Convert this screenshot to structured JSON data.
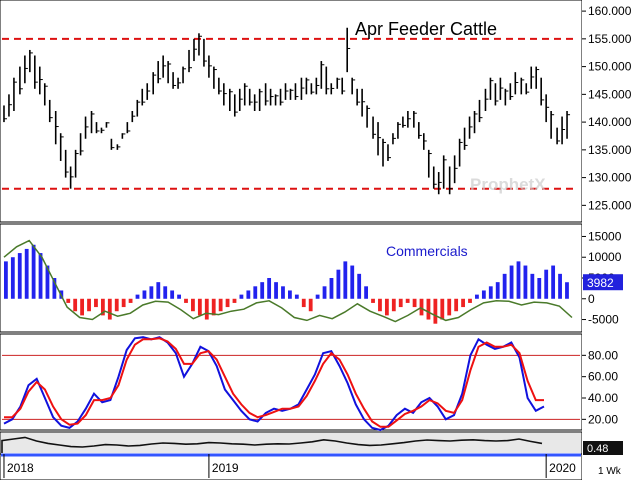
{
  "chart_data": [
    {
      "type": "ohlc",
      "title": "Apr Feeder Cattle",
      "ylim": [
        122,
        162
      ],
      "y_ticks": [
        "160.000",
        "155.000",
        "150.000",
        "145.000",
        "140.000",
        "135.000",
        "130.000",
        "125.000"
      ],
      "y_tick_values": [
        160,
        155,
        150,
        145,
        140,
        135,
        130,
        125
      ],
      "reference_lines": [
        155,
        128
      ],
      "reference_color": "#dd1111",
      "watermark": "ProphetX",
      "bar_color": "#000000",
      "series": [
        {
          "name": "price",
          "values": [
            [
              0.0,
              143,
              140
            ],
            [
              0.5,
              145,
              141
            ],
            [
              1.0,
              148,
              142
            ],
            [
              1.6,
              150,
              145
            ],
            [
              2.1,
              152,
              147
            ],
            [
              2.6,
              153,
              149
            ],
            [
              3.1,
              152,
              146
            ],
            [
              3.6,
              150,
              145
            ],
            [
              4.1,
              147,
              143
            ],
            [
              4.6,
              144,
              140
            ],
            [
              5.2,
              142,
              136
            ],
            [
              5.7,
              138,
              133
            ],
            [
              6.2,
              135,
              130
            ],
            [
              6.7,
              132,
              128
            ],
            [
              7.2,
              135,
              130
            ],
            [
              7.7,
              138,
              134
            ],
            [
              8.2,
              141,
              137
            ],
            [
              8.8,
              142,
              138
            ],
            [
              9.3,
              140,
              138
            ],
            [
              9.8,
              139,
              138
            ],
            [
              10.3,
              140,
              139
            ],
            [
              10.8,
              137,
              135
            ],
            [
              11.4,
              136,
              135
            ],
            [
              11.9,
              138,
              137
            ],
            [
              12.4,
              140,
              138
            ],
            [
              12.9,
              142,
              140
            ],
            [
              13.4,
              144,
              141
            ],
            [
              13.9,
              146,
              143
            ],
            [
              14.4,
              147,
              144
            ],
            [
              15.0,
              149,
              145
            ],
            [
              15.5,
              151,
              147
            ],
            [
              16.0,
              152,
              148
            ],
            [
              16.5,
              151,
              147
            ],
            [
              17.0,
              149,
              146
            ],
            [
              17.5,
              148,
              146
            ],
            [
              18.0,
              150,
              147
            ],
            [
              18.6,
              153,
              149
            ],
            [
              19.1,
              155,
              151
            ],
            [
              19.6,
              156,
              152
            ],
            [
              20.1,
              155,
              150
            ],
            [
              20.6,
              152,
              148
            ],
            [
              21.1,
              150,
              146
            ],
            [
              21.6,
              148,
              145
            ],
            [
              22.1,
              147,
              143
            ],
            [
              22.7,
              146,
              142
            ],
            [
              23.2,
              145,
              141
            ],
            [
              23.7,
              146,
              142
            ],
            [
              24.2,
              147,
              143
            ],
            [
              24.7,
              146,
              143
            ],
            [
              25.2,
              145,
              142
            ],
            [
              25.7,
              146,
              142
            ],
            [
              26.3,
              147,
              143
            ],
            [
              26.8,
              146,
              143
            ],
            [
              27.3,
              145,
              143
            ],
            [
              27.8,
              146,
              143
            ],
            [
              28.3,
              147,
              144
            ],
            [
              28.8,
              146,
              144
            ],
            [
              29.3,
              147,
              144
            ],
            [
              29.9,
              148,
              144
            ],
            [
              30.4,
              148,
              145
            ],
            [
              30.9,
              147,
              145
            ],
            [
              31.4,
              148,
              145
            ],
            [
              31.9,
              151,
              146
            ],
            [
              32.4,
              150,
              145
            ],
            [
              32.9,
              147,
              145
            ],
            [
              33.5,
              148,
              146
            ],
            [
              34.0,
              148,
              145
            ],
            [
              34.5,
              157,
              149
            ],
            [
              35.0,
              148,
              145
            ],
            [
              35.5,
              146,
              143
            ],
            [
              36.0,
              146,
              141
            ],
            [
              36.5,
              143,
              139
            ],
            [
              37.1,
              141,
              137
            ],
            [
              37.6,
              140,
              134
            ],
            [
              38.1,
              137,
              132
            ],
            [
              38.6,
              136,
              133
            ],
            [
              39.1,
              138,
              136
            ],
            [
              39.6,
              140,
              137
            ],
            [
              40.1,
              141,
              139
            ],
            [
              40.6,
              142,
              139
            ],
            [
              41.2,
              142,
              139
            ],
            [
              41.7,
              140,
              137
            ],
            [
              42.2,
              138,
              135
            ],
            [
              42.7,
              135,
              130
            ],
            [
              43.2,
              132,
              128
            ],
            [
              43.7,
              131,
              127
            ],
            [
              44.2,
              134,
              128
            ],
            [
              44.8,
              132,
              127
            ],
            [
              45.3,
              134,
              129
            ],
            [
              45.8,
              137,
              132
            ],
            [
              46.3,
              139,
              135
            ],
            [
              46.8,
              141,
              137
            ],
            [
              47.3,
              142,
              138
            ],
            [
              47.8,
              144,
              140
            ],
            [
              48.4,
              146,
              142
            ],
            [
              48.9,
              148,
              144
            ],
            [
              49.4,
              147,
              143
            ],
            [
              49.9,
              148,
              144
            ],
            [
              50.4,
              146,
              143
            ],
            [
              50.9,
              147,
              144
            ],
            [
              51.4,
              149,
              145
            ],
            [
              52.0,
              148,
              145
            ],
            [
              52.5,
              147,
              145
            ],
            [
              53.0,
              150,
              146
            ],
            [
              53.5,
              150,
              146
            ],
            [
              54.0,
              148,
              143
            ],
            [
              54.5,
              145,
              140
            ],
            [
              55.0,
              142,
              137
            ],
            [
              55.6,
              139,
              136
            ],
            [
              56.1,
              141,
              136
            ],
            [
              56.6,
              142,
              137
            ]
          ]
        }
      ]
    },
    {
      "type": "bar",
      "title": "Commercials",
      "ylim": [
        -8000,
        18000
      ],
      "y_ticks": [
        "15000",
        "10000",
        "5000",
        "0",
        "-5000"
      ],
      "y_tick_values": [
        15000,
        10000,
        5000,
        0,
        -5000
      ],
      "current_value_label": "3982",
      "positive_color": "#2222ee",
      "negative_color": "#ee2222",
      "net_line_color": "#4a7a2a",
      "series": [
        {
          "name": "net_position",
          "values": [
            9000,
            10000,
            11000,
            12000,
            13000,
            11000,
            8000,
            5000,
            2000,
            -1000,
            -3000,
            -4000,
            -3000,
            -2000,
            -4000,
            -5000,
            -3000,
            -2000,
            -1000,
            1000,
            2000,
            3000,
            4000,
            3000,
            2000,
            1000,
            -1000,
            -3000,
            -4000,
            -5000,
            -4000,
            -3000,
            -2000,
            -1000,
            1000,
            2000,
            3000,
            4000,
            5000,
            4000,
            3000,
            2000,
            1000,
            -2000,
            -3000,
            1000,
            3000,
            5000,
            7000,
            9000,
            8000,
            6000,
            3000,
            -1000,
            -3000,
            -4000,
            -3000,
            -2000,
            -1000,
            -2000,
            -4000,
            -5000,
            -6000,
            -5000,
            -4000,
            -3000,
            -2000,
            -1000,
            1000,
            2000,
            3000,
            4000,
            6000,
            8000,
            9000,
            8000,
            6000,
            5000,
            7000,
            8000,
            6000,
            3982
          ]
        },
        {
          "name": "net_line",
          "values": [
            10000,
            12500,
            14000,
            10000,
            4000,
            -2000,
            -4500,
            -5000,
            -3000,
            -4200,
            -3500,
            -1500,
            -600,
            -800,
            -2600,
            -4800,
            -3500,
            -3800,
            -3000,
            -2500,
            -1000,
            -500,
            -2200,
            -4500,
            -5200,
            -4000,
            -4800,
            -3200,
            -1200,
            -3000,
            -4200,
            -5500,
            -4000,
            -2200,
            -3800,
            -5200,
            -4500,
            -2600,
            -1000,
            -500,
            -600,
            -1500,
            -800,
            -1000,
            -1800,
            -4500
          ]
        }
      ]
    },
    {
      "type": "line",
      "title": "",
      "ylim": [
        10,
        100
      ],
      "y_ticks": [
        "80.00",
        "60.00",
        "40.00",
        "20.00"
      ],
      "y_tick_values": [
        80,
        60,
        40,
        20
      ],
      "reference_lines": [
        80,
        20
      ],
      "reference_color": "#cc2222",
      "series": [
        {
          "name": "fast",
          "color": "#1111dd",
          "values": [
            16,
            20,
            32,
            52,
            58,
            40,
            22,
            14,
            12,
            18,
            30,
            44,
            36,
            38,
            60,
            85,
            96,
            97,
            95,
            97,
            92,
            82,
            60,
            72,
            88,
            84,
            70,
            48,
            38,
            28,
            20,
            18,
            26,
            30,
            28,
            30,
            34,
            48,
            62,
            82,
            84,
            70,
            54,
            34,
            20,
            12,
            10,
            14,
            24,
            30,
            26,
            36,
            40,
            32,
            20,
            24,
            44,
            80,
            95,
            90,
            86,
            88,
            92,
            78,
            40,
            28,
            32
          ]
        },
        {
          "name": "slow",
          "color": "#ee1111",
          "values": [
            22,
            22,
            30,
            46,
            55,
            48,
            32,
            20,
            15,
            16,
            24,
            38,
            38,
            40,
            52,
            76,
            90,
            95,
            95,
            96,
            93,
            86,
            72,
            72,
            82,
            84,
            76,
            60,
            44,
            34,
            26,
            22,
            24,
            27,
            30,
            30,
            32,
            42,
            56,
            72,
            82,
            76,
            62,
            44,
            30,
            18,
            13,
            13,
            19,
            25,
            28,
            32,
            38,
            35,
            28,
            26,
            38,
            66,
            88,
            92,
            88,
            88,
            90,
            82,
            56,
            38,
            38
          ]
        }
      ]
    },
    {
      "type": "area",
      "title": "",
      "ylim": [
        0,
        1.0
      ],
      "current_value_label": "0.48",
      "color": "#111111",
      "series": [
        {
          "name": "volatility",
          "values": [
            0.62,
            0.7,
            0.78,
            0.6,
            0.48,
            0.4,
            0.32,
            0.3,
            0.35,
            0.42,
            0.4,
            0.35,
            0.38,
            0.45,
            0.5,
            0.48,
            0.44,
            0.46,
            0.52,
            0.5,
            0.46,
            0.44,
            0.4,
            0.44,
            0.46,
            0.45,
            0.5,
            0.56,
            0.66,
            0.6,
            0.5,
            0.42,
            0.38,
            0.4,
            0.46,
            0.52,
            0.6,
            0.65,
            0.62,
            0.6,
            0.64,
            0.66,
            0.62,
            0.6,
            0.62,
            0.7,
            0.58,
            0.48
          ]
        }
      ]
    },
    {
      "type": "timeline",
      "labels": [
        "2018",
        "2019",
        "2020"
      ],
      "positions": [
        0.0,
        20.6,
        54.5
      ],
      "xlim": [
        -0.4,
        57.5
      ],
      "period_label": "1 Wk"
    }
  ]
}
